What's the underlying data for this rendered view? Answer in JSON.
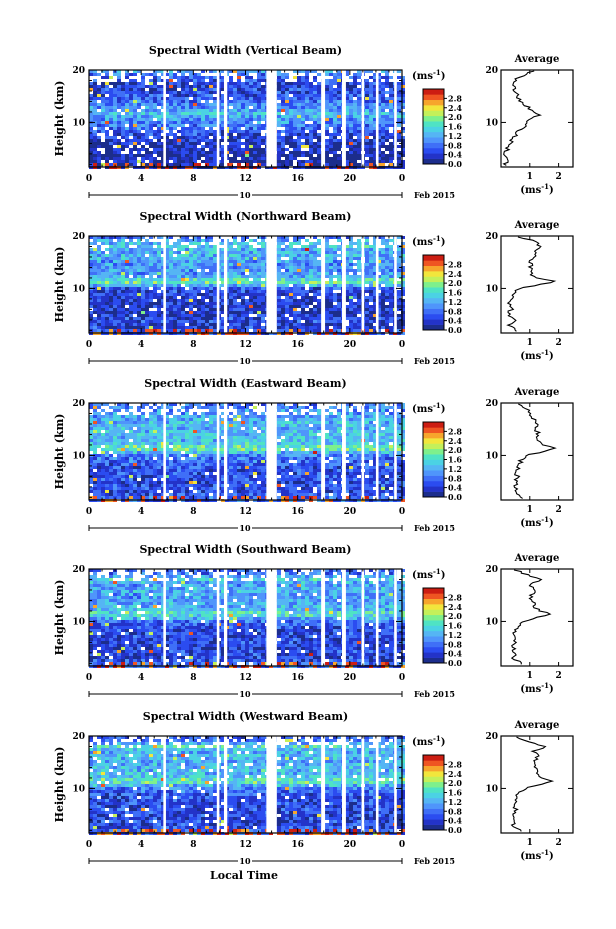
{
  "figure": {
    "xlabel": "Local Time",
    "ylabel": "Height (km)",
    "date_label": "Feb 2015",
    "date_marker": "10",
    "colorbar_unit": "(ms",
    "colorbar_unit_exp": "-1",
    "colorbar_unit_close": ")",
    "avg_title": "Average",
    "avg_xunit": "(ms",
    "avg_xunit_exp": "-1",
    "avg_xunit_close": ")"
  },
  "chart_data": [
    {
      "type": "heatmap",
      "title": "Spectral Width (Vertical Beam)",
      "xlabel": "Local Time",
      "ylabel": "Height (km)",
      "x_ticks": [
        "0",
        "4",
        "8",
        "12",
        "16",
        "20",
        "0"
      ],
      "y_ticks": [
        "10",
        "20"
      ],
      "xlim": [
        0,
        24
      ],
      "ylim": [
        1.5,
        20
      ],
      "colorbar": {
        "label": "(ms-1)",
        "ticks": [
          "0.0",
          "0.4",
          "0.8",
          "1.2",
          "1.6",
          "2.0",
          "2.4",
          "2.8"
        ],
        "range": [
          0,
          3.2
        ]
      },
      "data_gaps_hours": [
        [
          5.7,
          5.9
        ],
        [
          9.8,
          10.0
        ],
        [
          10.35,
          10.6
        ],
        [
          13.6,
          14.4
        ],
        [
          17.8,
          18.1
        ],
        [
          19.4,
          19.7
        ],
        [
          20.9,
          21.1
        ],
        [
          22.0,
          22.2
        ],
        [
          23.4,
          23.6
        ]
      ],
      "average_profile": {
        "title": "Average",
        "xlabel": "(ms-1)",
        "x_ticks": [
          "1",
          "2"
        ],
        "y_ticks": [
          "10",
          "20"
        ],
        "xlim": [
          0,
          2.5
        ],
        "height": [
          2,
          3,
          4,
          5,
          6,
          7,
          8,
          9,
          10,
          11,
          11.5,
          12,
          13,
          14,
          15,
          16,
          17,
          18,
          19,
          20
        ],
        "value": [
          0.18,
          0.16,
          0.18,
          0.22,
          0.3,
          0.4,
          0.55,
          0.75,
          0.9,
          1.05,
          1.4,
          1.15,
          0.9,
          0.7,
          0.55,
          0.5,
          0.45,
          0.5,
          0.75,
          1.2
        ]
      }
    },
    {
      "type": "heatmap",
      "title": "Spectral Width (Northward Beam)",
      "xlabel": "Local Time",
      "ylabel": "Height (km)",
      "x_ticks": [
        "0",
        "4",
        "8",
        "12",
        "16",
        "20",
        "0"
      ],
      "y_ticks": [
        "10",
        "20"
      ],
      "xlim": [
        0,
        24
      ],
      "ylim": [
        1.5,
        20
      ],
      "colorbar": {
        "label": "(ms-1)",
        "ticks": [
          "0.0",
          "0.4",
          "0.8",
          "1.2",
          "1.6",
          "2.0",
          "2.4",
          "2.8"
        ],
        "range": [
          0,
          3.2
        ]
      },
      "data_gaps_hours": [
        [
          5.7,
          5.9
        ],
        [
          9.8,
          10.0
        ],
        [
          10.35,
          10.6
        ],
        [
          13.6,
          14.4
        ],
        [
          17.8,
          18.1
        ],
        [
          19.4,
          19.7
        ],
        [
          20.9,
          21.1
        ],
        [
          22.0,
          22.2
        ],
        [
          23.4,
          23.6
        ]
      ],
      "average_profile": {
        "title": "Average",
        "xlabel": "(ms-1)",
        "x_ticks": [
          "1",
          "2"
        ],
        "y_ticks": [
          "10",
          "20"
        ],
        "xlim": [
          0,
          2.5
        ],
        "height": [
          2,
          3,
          4,
          5,
          6,
          7,
          8,
          9,
          10,
          11,
          11.5,
          12,
          13,
          14,
          15,
          16,
          17,
          18,
          19,
          20
        ],
        "value": [
          0.6,
          0.3,
          0.55,
          0.25,
          0.35,
          0.3,
          0.35,
          0.4,
          0.6,
          1.6,
          1.85,
          1.2,
          1.0,
          1.05,
          1.0,
          1.25,
          1.15,
          1.35,
          1.25,
          0.5
        ]
      }
    },
    {
      "type": "heatmap",
      "title": "Spectral Width (Eastward Beam)",
      "xlabel": "Local Time",
      "ylabel": "Height (km)",
      "x_ticks": [
        "0",
        "4",
        "8",
        "12",
        "16",
        "20",
        "0"
      ],
      "y_ticks": [
        "10",
        "20"
      ],
      "xlim": [
        0,
        24
      ],
      "ylim": [
        1.5,
        20
      ],
      "colorbar": {
        "label": "(ms-1)",
        "ticks": [
          "0.0",
          "0.4",
          "0.8",
          "1.2",
          "1.6",
          "2.0",
          "2.4",
          "2.8"
        ],
        "range": [
          0,
          3.2
        ]
      },
      "data_gaps_hours": [
        [
          5.7,
          5.9
        ],
        [
          9.8,
          10.0
        ],
        [
          10.35,
          10.6
        ],
        [
          13.6,
          14.4
        ],
        [
          17.8,
          18.1
        ],
        [
          19.4,
          19.7
        ],
        [
          20.9,
          21.1
        ],
        [
          22.0,
          22.2
        ],
        [
          23.4,
          23.6
        ]
      ],
      "average_profile": {
        "title": "Average",
        "xlabel": "(ms-1)",
        "x_ticks": [
          "1",
          "2"
        ],
        "y_ticks": [
          "10",
          "20"
        ],
        "xlim": [
          0,
          2.5
        ],
        "height": [
          2,
          3,
          4,
          5,
          6,
          7,
          8,
          9,
          10,
          11,
          11.5,
          12,
          13,
          14,
          15,
          16,
          17,
          18,
          19,
          20
        ],
        "value": [
          0.75,
          0.5,
          0.55,
          0.5,
          0.55,
          0.55,
          0.6,
          0.7,
          0.9,
          1.6,
          1.85,
          1.4,
          1.25,
          1.3,
          1.2,
          1.3,
          1.1,
          1.0,
          0.9,
          0.6
        ]
      }
    },
    {
      "type": "heatmap",
      "title": "Spectral Width (Southward Beam)",
      "xlabel": "Local Time",
      "ylabel": "Height (km)",
      "x_ticks": [
        "0",
        "4",
        "8",
        "12",
        "16",
        "20",
        "0"
      ],
      "y_ticks": [
        "10",
        "20"
      ],
      "xlim": [
        0,
        24
      ],
      "ylim": [
        1.5,
        20
      ],
      "colorbar": {
        "label": "(ms-1)",
        "ticks": [
          "0.0",
          "0.4",
          "0.8",
          "1.2",
          "1.6",
          "2.0",
          "2.4",
          "2.8"
        ],
        "range": [
          0,
          3.2
        ]
      },
      "data_gaps_hours": [
        [
          5.7,
          5.9
        ],
        [
          9.8,
          10.0
        ],
        [
          10.35,
          10.6
        ],
        [
          13.6,
          14.4
        ],
        [
          17.8,
          18.1
        ],
        [
          19.4,
          19.7
        ],
        [
          20.9,
          21.1
        ],
        [
          22.0,
          22.2
        ],
        [
          23.4,
          23.6
        ]
      ],
      "average_profile": {
        "title": "Average",
        "xlabel": "(ms-1)",
        "x_ticks": [
          "1",
          "2"
        ],
        "y_ticks": [
          "10",
          "20"
        ],
        "xlim": [
          0,
          2.5
        ],
        "height": [
          2,
          3,
          4,
          5,
          6,
          7,
          8,
          9,
          10,
          11,
          11.5,
          12,
          13,
          14,
          15,
          16,
          17,
          18,
          19,
          20
        ],
        "value": [
          0.7,
          0.45,
          0.5,
          0.4,
          0.45,
          0.45,
          0.5,
          0.55,
          0.75,
          1.45,
          1.7,
          1.3,
          1.15,
          1.1,
          1.05,
          1.2,
          1.0,
          1.4,
          0.85,
          0.45
        ]
      }
    },
    {
      "type": "heatmap",
      "title": "Spectral Width (Westward Beam)",
      "xlabel": "Local Time",
      "ylabel": "Height (km)",
      "x_ticks": [
        "0",
        "4",
        "8",
        "12",
        "16",
        "20",
        "0"
      ],
      "y_ticks": [
        "10",
        "20"
      ],
      "xlim": [
        0,
        24
      ],
      "ylim": [
        1.5,
        20
      ],
      "colorbar": {
        "label": "(ms-1)",
        "ticks": [
          "0.0",
          "0.4",
          "0.8",
          "1.2",
          "1.6",
          "2.0",
          "2.4",
          "2.8"
        ],
        "range": [
          0,
          3.2
        ]
      },
      "data_gaps_hours": [
        [
          5.7,
          5.9
        ],
        [
          9.8,
          10.0
        ],
        [
          10.35,
          10.6
        ],
        [
          13.6,
          14.4
        ],
        [
          17.8,
          18.1
        ],
        [
          19.4,
          19.7
        ],
        [
          20.9,
          21.1
        ],
        [
          22.0,
          22.2
        ],
        [
          23.4,
          23.6
        ]
      ],
      "average_profile": {
        "title": "Average",
        "xlabel": "(ms-1)",
        "x_ticks": [
          "1",
          "2"
        ],
        "y_ticks": [
          "10",
          "20"
        ],
        "xlim": [
          0,
          2.5
        ],
        "height": [
          2,
          3,
          4,
          5,
          6,
          7,
          8,
          9,
          10,
          11,
          11.5,
          12,
          13,
          14,
          15,
          16,
          17,
          18,
          19,
          20
        ],
        "value": [
          0.65,
          0.45,
          0.5,
          0.45,
          0.5,
          0.5,
          0.55,
          0.6,
          0.8,
          1.5,
          1.8,
          1.35,
          1.2,
          1.25,
          1.1,
          1.3,
          1.1,
          1.55,
          0.9,
          0.45
        ]
      }
    }
  ],
  "palette": [
    "#1c2d8c",
    "#2333c8",
    "#2b4cf0",
    "#3f6ff7",
    "#4f95fb",
    "#55b5f4",
    "#4bd2e4",
    "#4fe3c4",
    "#7ef08c",
    "#c4f05a",
    "#f2e63c",
    "#f7a52c",
    "#ef5522",
    "#cc1d12"
  ]
}
